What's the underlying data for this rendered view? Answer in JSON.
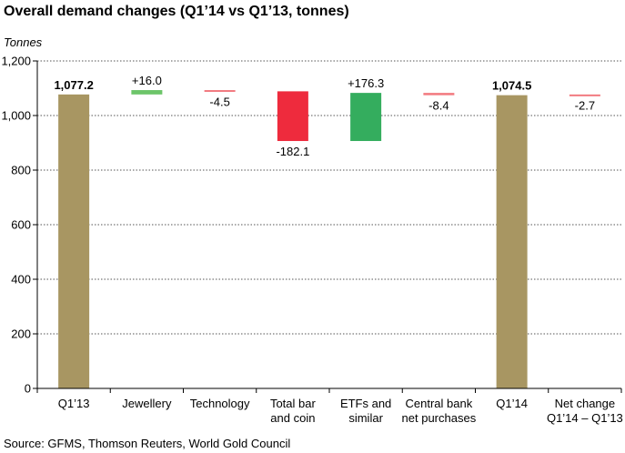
{
  "title": "Overall demand changes (Q1’14 vs Q1’13, tonnes)",
  "source": "Source: GFMS, Thomson Reuters, World Gold Council",
  "chart_data": {
    "type": "waterfall",
    "ylabel": "Tonnes",
    "ylim": [
      0,
      1200
    ],
    "yticks": [
      0,
      200,
      400,
      600,
      800,
      1000,
      1200
    ],
    "ytick_labels": [
      "0",
      "200",
      "400",
      "600",
      "800",
      "1,000",
      "1,200"
    ],
    "grid": "dotted horizontal",
    "categories": [
      [
        "Q1’13"
      ],
      [
        "Jewellery"
      ],
      [
        "Technology"
      ],
      [
        "Total bar",
        "and coin"
      ],
      [
        "ETFs and",
        "similar"
      ],
      [
        "Central bank",
        "net purchases"
      ],
      [
        "Q1’14"
      ],
      [
        "Net change",
        "Q1’14 – Q1’13"
      ]
    ],
    "bars": [
      {
        "kind": "total",
        "value": 1077.2,
        "label": "1,077.2",
        "bold": true
      },
      {
        "kind": "change",
        "base": 1077.2,
        "value": 16.0,
        "label": "+16.0"
      },
      {
        "kind": "change",
        "base": 1093.2,
        "value": -4.5,
        "label": "-4.5"
      },
      {
        "kind": "change",
        "base": 1088.7,
        "value": -182.1,
        "label": "-182.1"
      },
      {
        "kind": "change",
        "base": 906.6,
        "value": 176.3,
        "label": "+176.3"
      },
      {
        "kind": "change",
        "base": 1082.9,
        "value": -8.4,
        "label": "-8.4"
      },
      {
        "kind": "total",
        "value": 1074.5,
        "label": "1,074.5",
        "bold": true
      },
      {
        "kind": "change",
        "base": 1077.2,
        "value": -2.7,
        "label": "-2.7"
      }
    ],
    "colors": {
      "total": "#a89662",
      "positive": "#34ad5e",
      "positive_small": "#6dc56a",
      "negative": "#ee2b3d",
      "negative_small": "#f27a80",
      "grid": "#555555"
    }
  }
}
